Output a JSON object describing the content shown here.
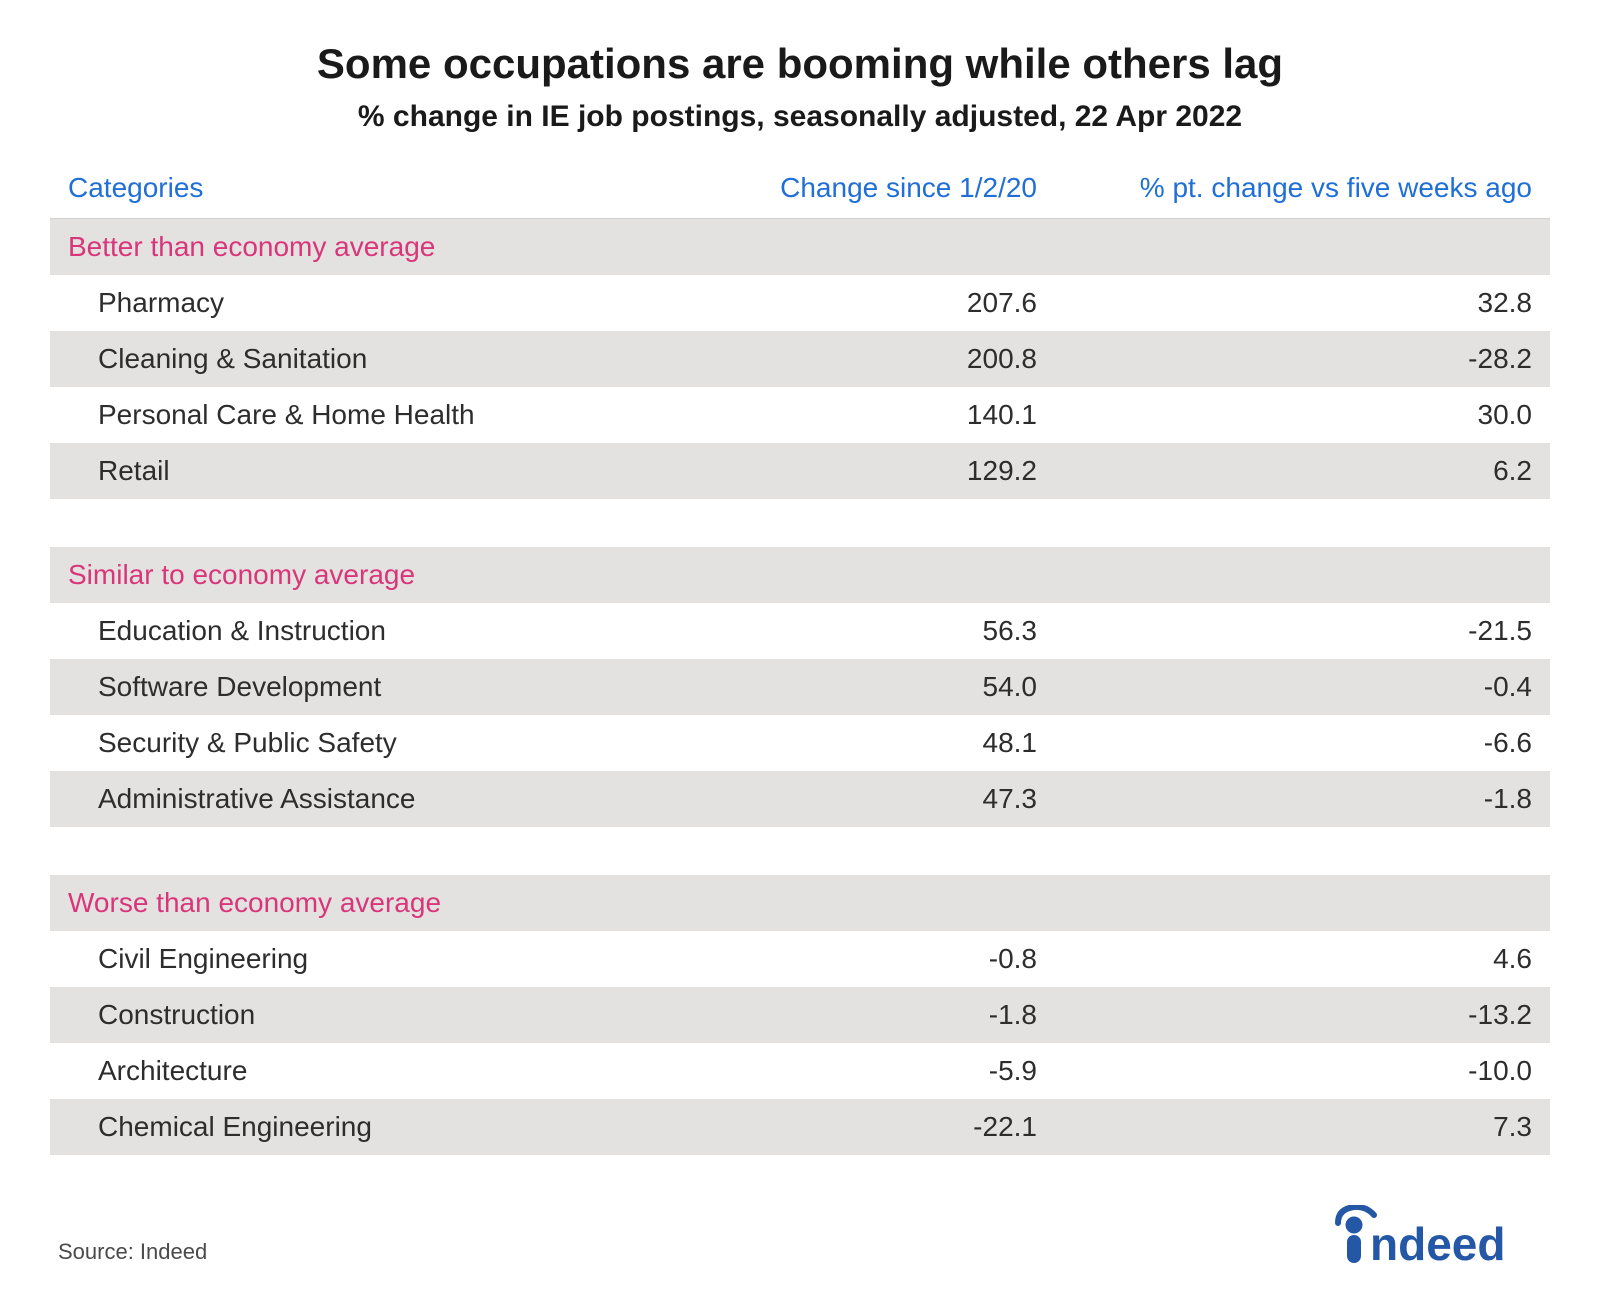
{
  "title": "Some occupations are booming while others lag",
  "subtitle": "% change in IE job postings, seasonally adjusted, 22 Apr 2022",
  "table": {
    "type": "table",
    "columns": [
      "Categories",
      "Change since 1/2/20",
      "% pt. change vs five weeks ago"
    ],
    "column_alignment": [
      "left",
      "right",
      "right"
    ],
    "header_color": "#1f6fd6",
    "section_label_color": "#d9367a",
    "row_band_color": "#e4e2e0",
    "background_color": "#ffffff",
    "text_color": "#2d2d2d",
    "font_size_pt": 21,
    "sections": [
      {
        "label": "Better than economy average",
        "rows": [
          {
            "name": "Pharmacy",
            "change": "207.6",
            "pct": "32.8"
          },
          {
            "name": "Cleaning & Sanitation",
            "change": "200.8",
            "pct": "-28.2"
          },
          {
            "name": "Personal Care & Home Health",
            "change": "140.1",
            "pct": "30.0"
          },
          {
            "name": "Retail",
            "change": "129.2",
            "pct": "6.2"
          }
        ]
      },
      {
        "label": "Similar to economy average",
        "rows": [
          {
            "name": "Education & Instruction",
            "change": "56.3",
            "pct": "-21.5"
          },
          {
            "name": "Software Development",
            "change": "54.0",
            "pct": "-0.4"
          },
          {
            "name": "Security & Public Safety",
            "change": "48.1",
            "pct": "-6.6"
          },
          {
            "name": "Administrative Assistance",
            "change": "47.3",
            "pct": "-1.8"
          }
        ]
      },
      {
        "label": "Worse than economy average",
        "rows": [
          {
            "name": "Civil Engineering",
            "change": "-0.8",
            "pct": "4.6"
          },
          {
            "name": "Construction",
            "change": "-1.8",
            "pct": "-13.2"
          },
          {
            "name": "Architecture",
            "change": "-5.9",
            "pct": "-10.0"
          },
          {
            "name": "Chemical Engineering",
            "change": "-22.1",
            "pct": "7.3"
          }
        ]
      }
    ]
  },
  "source": "Source: Indeed",
  "logo": {
    "text": "indeed",
    "color": "#2557a7"
  }
}
